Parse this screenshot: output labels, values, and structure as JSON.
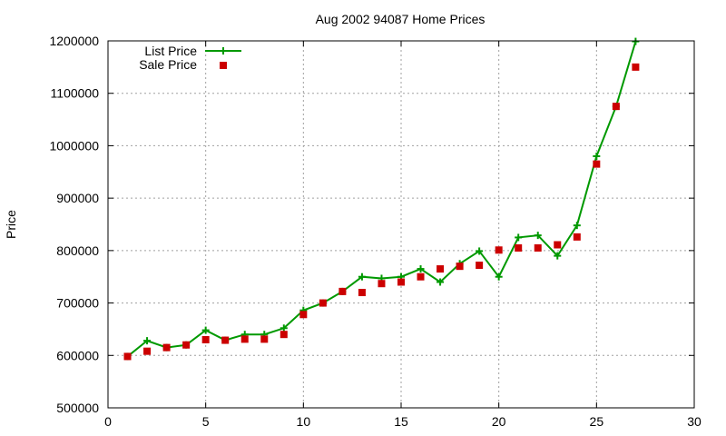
{
  "chart_data": {
    "type": "line",
    "title": "Aug 2002 94087 Home Prices",
    "xlabel": "",
    "ylabel": "Price",
    "xlim": [
      0,
      30
    ],
    "ylim": [
      500000,
      1200000
    ],
    "xticks": [
      0,
      5,
      10,
      15,
      20,
      25,
      30
    ],
    "yticks": [
      500000,
      600000,
      700000,
      800000,
      900000,
      1000000,
      1100000,
      1200000
    ],
    "grid": true,
    "legend_position": "top-left",
    "series": [
      {
        "name": "List Price",
        "style": "lines+crosses",
        "color": "#009900",
        "x": [
          1,
          2,
          3,
          4,
          5,
          6,
          7,
          8,
          9,
          10,
          11,
          12,
          13,
          14,
          15,
          16,
          17,
          18,
          19,
          20,
          21,
          22,
          23,
          24,
          25,
          26,
          27
        ],
        "y": [
          598000,
          628000,
          615000,
          620000,
          648000,
          629000,
          640000,
          640000,
          652000,
          686000,
          700000,
          722000,
          750000,
          747000,
          750000,
          765000,
          740000,
          775000,
          799000,
          750000,
          825000,
          829000,
          790000,
          848000,
          980000,
          1075000,
          1199000
        ]
      },
      {
        "name": "Sale Price",
        "style": "squares",
        "color": "#cc0000",
        "x": [
          1,
          2,
          3,
          4,
          5,
          6,
          7,
          8,
          9,
          10,
          11,
          12,
          13,
          14,
          15,
          16,
          17,
          18,
          19,
          20,
          21,
          22,
          23,
          24,
          25,
          26,
          27
        ],
        "y": [
          598000,
          608000,
          615000,
          620000,
          630000,
          629000,
          631000,
          631000,
          640000,
          678000,
          700000,
          722000,
          720000,
          737000,
          740000,
          750000,
          765000,
          770000,
          772000,
          801000,
          805000,
          805000,
          811000,
          826000,
          965000,
          1075000,
          1150000
        ]
      }
    ]
  }
}
